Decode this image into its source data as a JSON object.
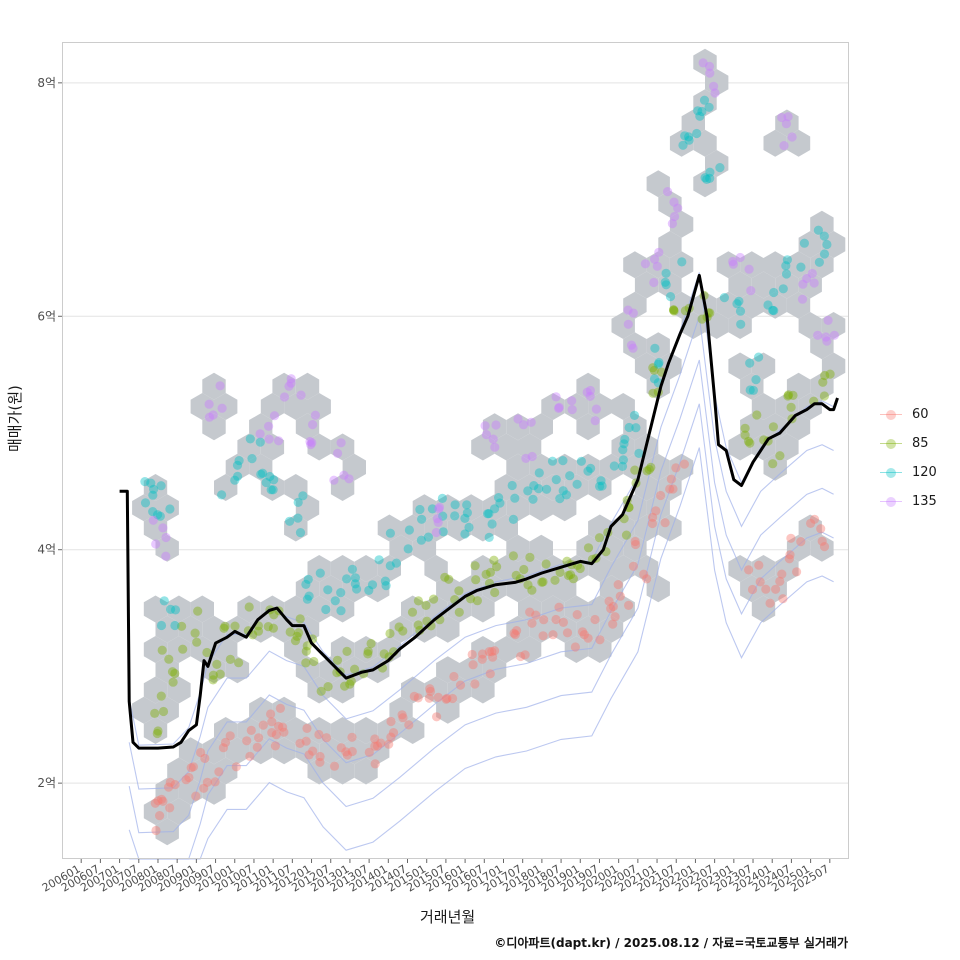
{
  "chart_data": {
    "type": "scatter",
    "xlabel": "거래년월",
    "ylabel": "매매가(원)",
    "yunit": "억",
    "ylim": [
      1.35,
      8.35
    ],
    "xlim": [
      2005.5,
      2026.0
    ],
    "grid": true,
    "legend_position": "right",
    "caption": "©디아파트(dapt.kr) / 2025.08.12 / 자료=국토교통부 실거래가",
    "y_ticks": [
      {
        "value": 2,
        "label": "2억"
      },
      {
        "value": 4,
        "label": "4억"
      },
      {
        "value": 6,
        "label": "6억"
      },
      {
        "value": 8,
        "label": "8억"
      }
    ],
    "x_ticks": [
      "200601",
      "200607",
      "200701",
      "200707",
      "200801",
      "200807",
      "200901",
      "200907",
      "201001",
      "201007",
      "201101",
      "201107",
      "201201",
      "201207",
      "201301",
      "201307",
      "201401",
      "201407",
      "201501",
      "201507",
      "201601",
      "201607",
      "201701",
      "201707",
      "201801",
      "201807",
      "201901",
      "201907",
      "202001",
      "202007",
      "202101",
      "202107",
      "202201",
      "202207",
      "202301",
      "202307",
      "202401",
      "202407",
      "202501",
      "202507"
    ],
    "series": [
      {
        "name": "60",
        "color": "#F8766D",
        "values": [
          [
            2007.9,
            1.75
          ],
          [
            2008.2,
            1.85
          ],
          [
            2008.9,
            2.05
          ],
          [
            2009.3,
            2.12
          ],
          [
            2009.8,
            2.25
          ],
          [
            2010.4,
            2.35
          ],
          [
            2010.9,
            2.5
          ],
          [
            2011.3,
            2.48
          ],
          [
            2011.9,
            2.35
          ],
          [
            2012.4,
            2.3
          ],
          [
            2012.9,
            2.25
          ],
          [
            2013.5,
            2.3
          ],
          [
            2014.0,
            2.45
          ],
          [
            2014.6,
            2.6
          ],
          [
            2015.2,
            2.7
          ],
          [
            2015.7,
            2.8
          ],
          [
            2016.3,
            2.95
          ],
          [
            2016.8,
            3.1
          ],
          [
            2017.4,
            3.2
          ],
          [
            2017.9,
            3.3
          ],
          [
            2018.5,
            3.35
          ],
          [
            2019.0,
            3.3
          ],
          [
            2019.6,
            3.4
          ],
          [
            2020.1,
            3.6
          ],
          [
            2020.6,
            3.9
          ],
          [
            2021.1,
            4.3
          ],
          [
            2021.5,
            4.6
          ],
          [
            2023.6,
            3.8
          ],
          [
            2024.1,
            3.7
          ],
          [
            2024.6,
            3.95
          ],
          [
            2025.2,
            4.1
          ]
        ]
      },
      {
        "name": "85",
        "color": "#7CAE00",
        "values": [
          [
            2007.9,
            2.6
          ],
          [
            2008.2,
            3.0
          ],
          [
            2008.8,
            3.3
          ],
          [
            2009.4,
            3.0
          ],
          [
            2009.9,
            3.2
          ],
          [
            2010.5,
            3.35
          ],
          [
            2011.0,
            3.4
          ],
          [
            2011.5,
            3.3
          ],
          [
            2012.0,
            3.1
          ],
          [
            2012.5,
            2.95
          ],
          [
            2013.0,
            3.0
          ],
          [
            2013.6,
            3.05
          ],
          [
            2014.1,
            3.2
          ],
          [
            2014.6,
            3.4
          ],
          [
            2015.2,
            3.5
          ],
          [
            2015.7,
            3.6
          ],
          [
            2016.3,
            3.7
          ],
          [
            2016.8,
            3.75
          ],
          [
            2017.4,
            3.8
          ],
          [
            2017.9,
            3.8
          ],
          [
            2018.5,
            3.85
          ],
          [
            2019.0,
            3.9
          ],
          [
            2019.5,
            4.0
          ],
          [
            2020.1,
            4.3
          ],
          [
            2020.6,
            4.7
          ],
          [
            2021.1,
            5.4
          ],
          [
            2021.6,
            5.9
          ],
          [
            2022.3,
            6.1
          ],
          [
            2023.5,
            5.0
          ],
          [
            2024.0,
            4.9
          ],
          [
            2024.6,
            5.2
          ],
          [
            2025.3,
            5.4
          ]
        ]
      },
      {
        "name": "120",
        "color": "#00BFC4",
        "values": [
          [
            2007.8,
            4.5
          ],
          [
            2008.1,
            4.4
          ],
          [
            2008.3,
            3.5
          ],
          [
            2009.9,
            4.6
          ],
          [
            2010.5,
            4.8
          ],
          [
            2011.0,
            4.5
          ],
          [
            2011.6,
            4.3
          ],
          [
            2012.1,
            3.7
          ],
          [
            2012.6,
            3.6
          ],
          [
            2013.1,
            3.7
          ],
          [
            2013.7,
            3.8
          ],
          [
            2014.3,
            4.0
          ],
          [
            2014.9,
            4.2
          ],
          [
            2015.5,
            4.3
          ],
          [
            2016.0,
            4.3
          ],
          [
            2016.6,
            4.2
          ],
          [
            2017.1,
            4.4
          ],
          [
            2017.7,
            4.5
          ],
          [
            2018.3,
            4.6
          ],
          [
            2018.8,
            4.6
          ],
          [
            2019.4,
            4.7
          ],
          [
            2019.9,
            4.8
          ],
          [
            2020.4,
            5.0
          ],
          [
            2020.9,
            5.6
          ],
          [
            2021.4,
            6.3
          ],
          [
            2021.8,
            7.5
          ],
          [
            2022.3,
            7.7
          ],
          [
            2022.5,
            7.25
          ],
          [
            2023.0,
            6.0
          ],
          [
            2023.6,
            5.5
          ],
          [
            2024.1,
            6.2
          ],
          [
            2024.6,
            6.5
          ],
          [
            2025.2,
            6.6
          ]
        ]
      },
      {
        "name": "135",
        "color": "#C77CFF",
        "values": [
          [
            2008.1,
            4.1
          ],
          [
            2009.5,
            5.3
          ],
          [
            2010.9,
            5.0
          ],
          [
            2011.5,
            5.3
          ],
          [
            2011.9,
            5.0
          ],
          [
            2012.8,
            4.75
          ],
          [
            2015.2,
            4.3
          ],
          [
            2016.6,
            4.95
          ],
          [
            2017.6,
            4.95
          ],
          [
            2018.6,
            5.2
          ],
          [
            2019.3,
            5.25
          ],
          [
            2020.2,
            5.9
          ],
          [
            2020.9,
            6.4
          ],
          [
            2021.5,
            6.9
          ],
          [
            2022.3,
            8.0
          ],
          [
            2023.2,
            6.35
          ],
          [
            2024.3,
            7.6
          ],
          [
            2025.0,
            6.2
          ],
          [
            2025.4,
            5.8
          ]
        ]
      }
    ],
    "median_line": {
      "name": "median",
      "color": "#000000",
      "x": [
        2007.0,
        2007.2,
        2007.25,
        2007.35,
        2007.5,
        2008.0,
        2008.4,
        2008.6,
        2008.8,
        2009.0,
        2009.1,
        2009.2,
        2009.3,
        2009.5,
        2009.8,
        2010.0,
        2010.3,
        2010.6,
        2010.9,
        2011.1,
        2011.35,
        2011.5,
        2011.8,
        2012.0,
        2012.3,
        2012.6,
        2012.9,
        2013.3,
        2013.6,
        2014.0,
        2014.3,
        2014.7,
        2015.2,
        2015.6,
        2016.0,
        2016.3,
        2016.8,
        2017.3,
        2017.6,
        2018.0,
        2018.5,
        2019.0,
        2019.3,
        2019.6,
        2019.8,
        2020.1,
        2020.5,
        2020.8,
        2021.1,
        2021.3,
        2021.6,
        2021.8,
        2022.1,
        2022.3,
        2022.5,
        2022.6,
        2022.8,
        2023.0,
        2023.2,
        2023.5,
        2023.7,
        2023.9,
        2024.2,
        2024.6,
        2024.9,
        2025.1,
        2025.3,
        2025.5,
        2025.6,
        2025.7
      ],
      "y": [
        4.5,
        4.5,
        2.7,
        2.35,
        2.3,
        2.3,
        2.31,
        2.35,
        2.45,
        2.5,
        2.75,
        3.05,
        3.0,
        3.2,
        3.25,
        3.3,
        3.25,
        3.4,
        3.48,
        3.5,
        3.4,
        3.35,
        3.35,
        3.2,
        3.1,
        3.0,
        2.9,
        2.95,
        2.97,
        3.05,
        3.15,
        3.25,
        3.4,
        3.5,
        3.6,
        3.65,
        3.7,
        3.72,
        3.75,
        3.8,
        3.85,
        3.9,
        3.88,
        4.0,
        4.2,
        4.3,
        4.6,
        5.0,
        5.4,
        5.6,
        5.85,
        6.0,
        6.35,
        6.0,
        5.3,
        4.9,
        4.85,
        4.6,
        4.55,
        4.75,
        4.85,
        4.95,
        5.0,
        5.15,
        5.2,
        5.25,
        5.25,
        5.2,
        5.2,
        5.3
      ]
    }
  }
}
